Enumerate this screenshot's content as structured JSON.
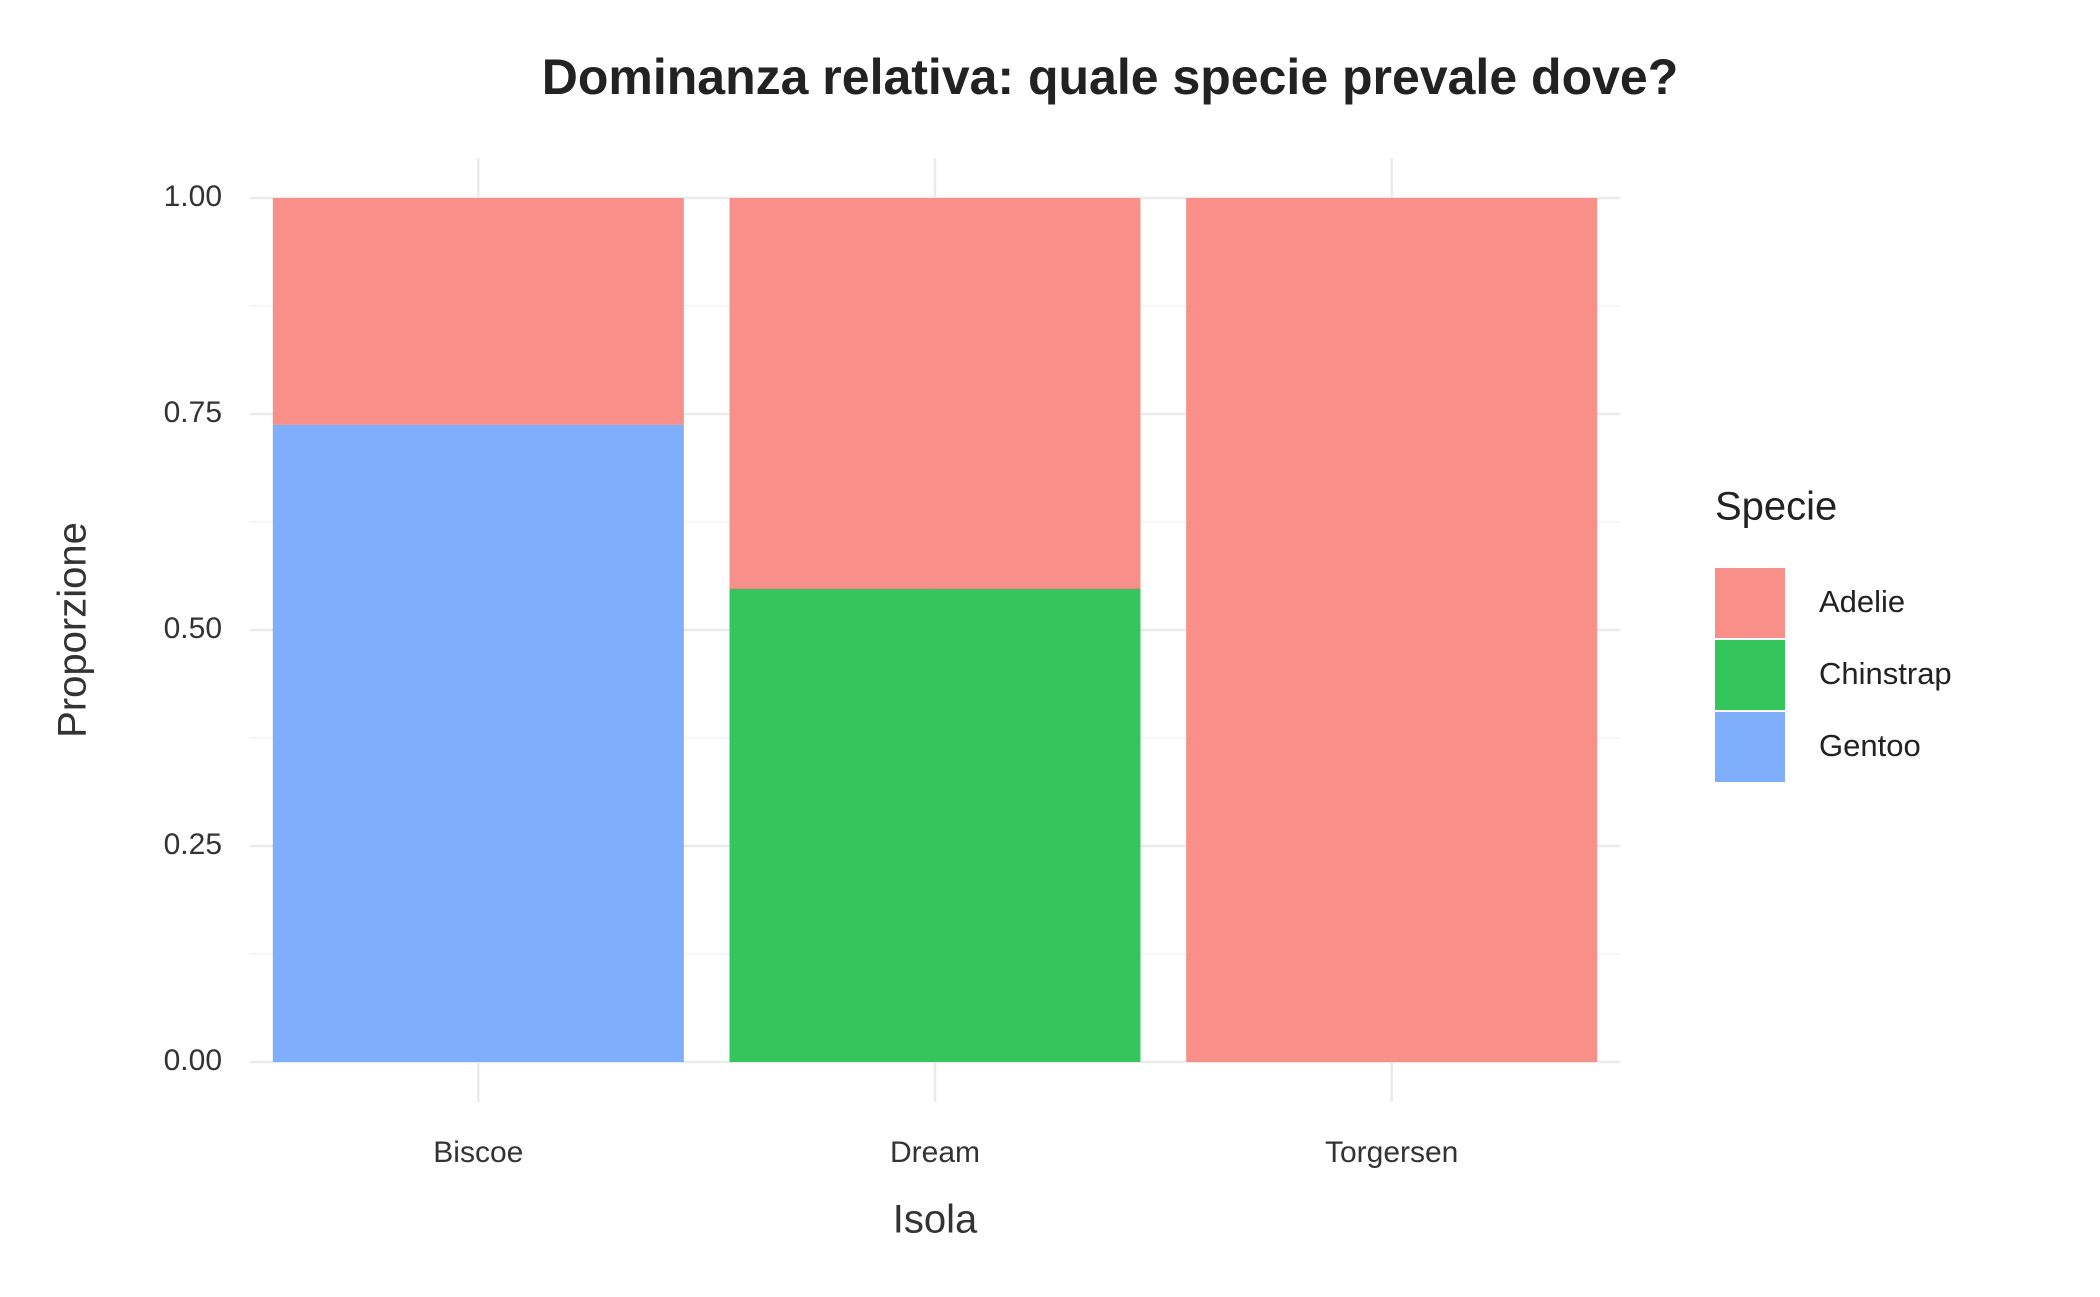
{
  "chart_data": {
    "type": "stacked_bar",
    "title": "Dominanza relativa: quale specie prevale dove?",
    "x_label": "Isola",
    "y_label": "Proporzione",
    "legend_title": "Specie",
    "categories": [
      "Biscoe",
      "Dream",
      "Torgersen"
    ],
    "series": [
      {
        "name": "Adelie",
        "color": "#F98F89",
        "values": [
          0.262,
          0.452,
          1
        ]
      },
      {
        "name": "Chinstrap",
        "color": "#35C55D",
        "values": [
          0,
          0.548,
          0
        ]
      },
      {
        "name": "Gentoo",
        "color": "#7FAFFC",
        "values": [
          0.738,
          0,
          0
        ]
      }
    ],
    "ylim": [
      0,
      1
    ],
    "yticks": [
      {
        "value": 0,
        "label": "0.00"
      },
      {
        "value": 0.25,
        "label": "0.25"
      },
      {
        "value": 0.5,
        "label": "0.50"
      },
      {
        "value": 0.75,
        "label": "0.75"
      },
      {
        "value": 1,
        "label": "1.00"
      }
    ],
    "grid": true,
    "legend_position": "right"
  }
}
